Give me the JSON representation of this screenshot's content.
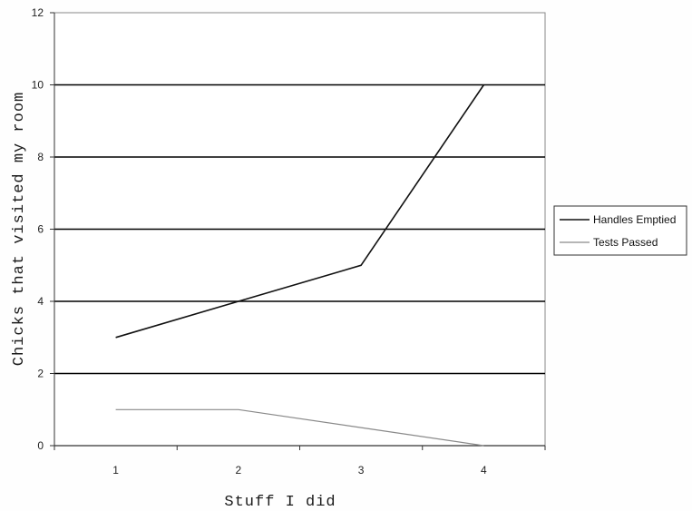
{
  "chart_data": {
    "type": "line",
    "x": [
      1,
      2,
      3,
      4
    ],
    "xlabel": "Stuff I did",
    "ylabel": "Chicks that visited my room",
    "ylim": [
      0,
      12
    ],
    "yticks": [
      0,
      2,
      4,
      6,
      8,
      10,
      12
    ],
    "grid": true,
    "legend_position": "right",
    "series": [
      {
        "name": "Handles Emptied",
        "values": [
          3,
          4,
          5,
          10
        ],
        "color": "#111111"
      },
      {
        "name": "Tests Passed",
        "values": [
          1,
          1,
          0.5,
          0
        ],
        "color": "#8a8a8a"
      }
    ]
  }
}
